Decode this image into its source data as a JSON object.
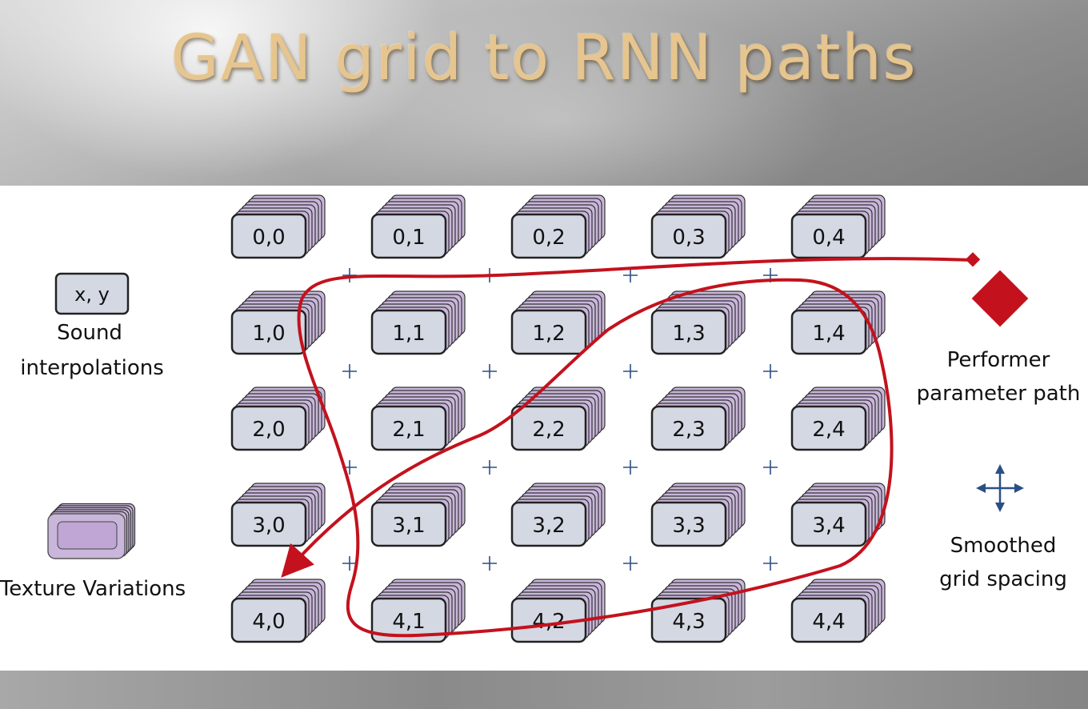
{
  "title": "GAN grid to RNN paths",
  "grid": {
    "rows": [
      [
        "0,0",
        "0,1",
        "0,2",
        "0,3",
        "0,4"
      ],
      [
        "1,0",
        "1,1",
        "1,2",
        "1,3",
        "1,4"
      ],
      [
        "2,0",
        "2,1",
        "2,2",
        "2,3",
        "2,4"
      ],
      [
        "3,0",
        "3,1",
        "3,2",
        "3,3",
        "3,4"
      ],
      [
        "4,0",
        "4,1",
        "4,2",
        "4,3",
        "4,4"
      ]
    ]
  },
  "legend": {
    "sound_box": "x, y",
    "sound_line1": "Sound",
    "sound_line2": "interpolations",
    "texture": "Texture Variations",
    "performer_line1": "Performer",
    "performer_line2": "parameter path",
    "smoothed_line1": "Smoothed",
    "smoothed_line2": "grid spacing"
  },
  "colors": {
    "path": "#c3121d",
    "card_fill": "#d4d8e3",
    "stack_fill": "#c9b6da",
    "cross": "#2a4f86"
  }
}
